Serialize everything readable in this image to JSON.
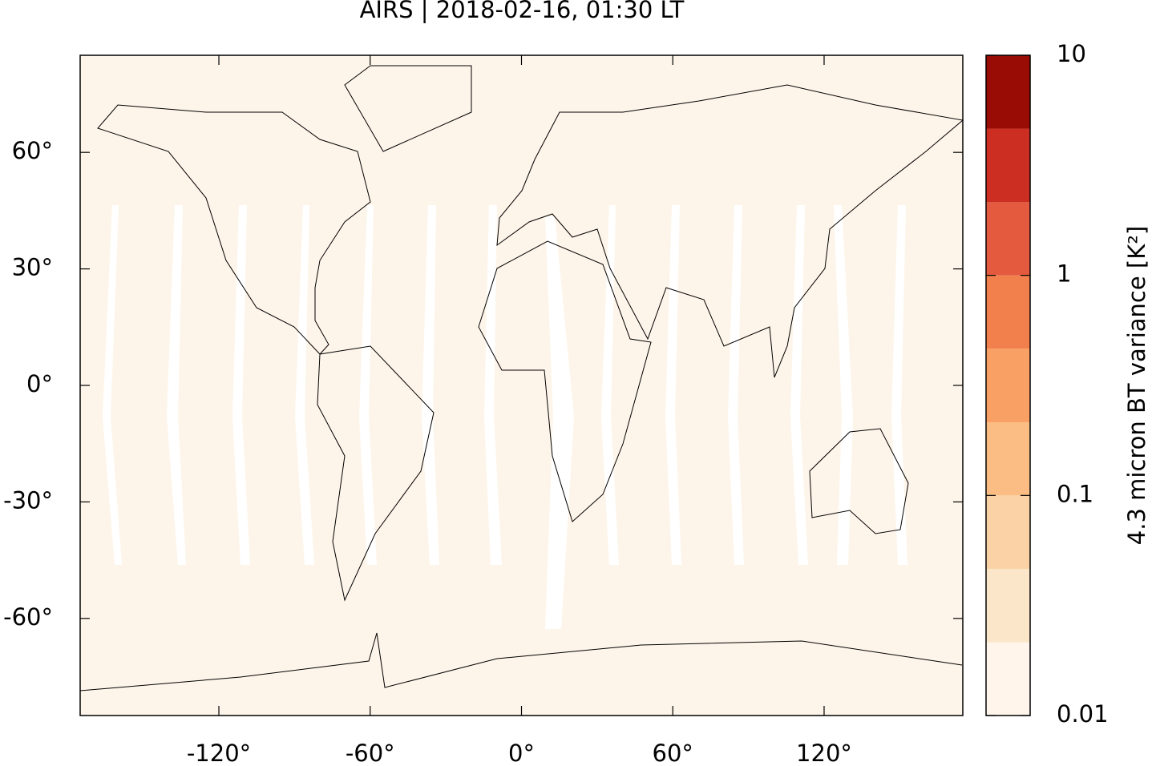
{
  "chart_data": {
    "type": "map",
    "title": "AIRS | 2018-02-16, 01:30 LT",
    "xlim": [
      -175,
      175
    ],
    "ylim": [
      -85,
      85
    ],
    "xticks": [
      {
        "value": -120,
        "label": "-120°"
      },
      {
        "value": -60,
        "label": "-60°"
      },
      {
        "value": 0,
        "label": "0°"
      },
      {
        "value": 60,
        "label": "60°"
      },
      {
        "value": 120,
        "label": "120°"
      }
    ],
    "yticks": [
      {
        "value": -60,
        "label": "-60°"
      },
      {
        "value": -30,
        "label": "-30°"
      },
      {
        "value": 0,
        "label": "0°"
      },
      {
        "value": 30,
        "label": "30°"
      },
      {
        "value": 60,
        "label": "60°"
      }
    ],
    "colorbar": {
      "label": "4.3 micron BT variance [K²]",
      "scale": "log",
      "lim": [
        0.01,
        10
      ],
      "ticks": [
        0.01,
        0.1,
        1,
        10
      ],
      "levels": [
        0.01,
        0.0215,
        0.0464,
        0.1,
        0.215,
        0.464,
        1,
        2.15,
        4.64,
        10
      ],
      "colors": [
        "#fff5eb",
        "#fbe6c9",
        "#fad2a5",
        "#fbbd84",
        "#f9a064",
        "#f2804d",
        "#e45a3f",
        "#cc2e21",
        "#990b05"
      ]
    }
  }
}
